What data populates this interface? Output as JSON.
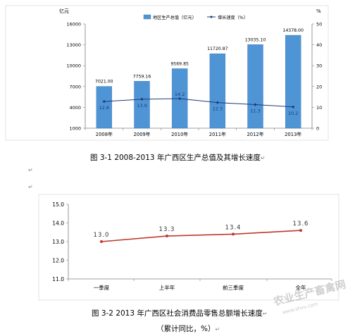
{
  "chart_data": [
    {
      "type": "bar",
      "caption": "图 3-1  2008-2013 年广西区生产总值及其增长速度",
      "left_unit": "亿元",
      "right_unit": "%",
      "categories": [
        "2008年",
        "2009年",
        "2010年",
        "2011年",
        "2012年",
        "2013年"
      ],
      "series": [
        {
          "name": "地区生产总值（亿元）",
          "type": "bar",
          "axis": "left",
          "values": [
            7021.0,
            7759.16,
            9569.85,
            11720.87,
            13035.1,
            14378.0
          ],
          "labels": [
            "7021.00",
            "7759.16",
            "9569.85",
            "11720.87",
            "13035.10",
            "14378.00"
          ]
        },
        {
          "name": "增长速度（%）",
          "type": "line",
          "axis": "right",
          "values": [
            12.8,
            13.9,
            14.2,
            12.3,
            11.3,
            10.2
          ],
          "labels": [
            "12.8",
            "13.9",
            "14.2",
            "12.3",
            "11.3",
            "10.2"
          ]
        }
      ],
      "y_left": {
        "range": [
          1000,
          16000
        ],
        "ticks": [
          "1000",
          "4000",
          "7000",
          "10000",
          "13000",
          "16000"
        ]
      },
      "y_right": {
        "range": [
          0,
          50
        ],
        "ticks": [
          "0",
          "10",
          "20",
          "30",
          "40",
          "50"
        ]
      },
      "legend_position": "top-center",
      "grid": false,
      "colors": {
        "bar": "#4f95d6",
        "line": "#1f3a7a"
      }
    },
    {
      "type": "line",
      "caption": "图 3-2  2013 年广西区社会消费品零售总额增长速度",
      "subcaption": "（累计同比，%）",
      "categories": [
        "一季度",
        "上半年",
        "前三季度",
        "全年"
      ],
      "series": [
        {
          "type": "line",
          "values": [
            13.0,
            13.3,
            13.4,
            13.6
          ],
          "labels": [
            "13.0",
            "13.3",
            "13.4",
            "13.6"
          ]
        }
      ],
      "ylim": [
        11.0,
        15.0
      ],
      "y_ticks": [
        "11.0",
        "12.0",
        "13.0",
        "14.0",
        "15.0"
      ],
      "grid": false,
      "colors": {
        "line": "#c0392b"
      }
    }
  ],
  "paragraph_marks": [
    "↵",
    "↵",
    "↵",
    "↵",
    "↵"
  ],
  "watermark": {
    "text": "农业生产畜禽网",
    "url": "www.shvv.com"
  }
}
